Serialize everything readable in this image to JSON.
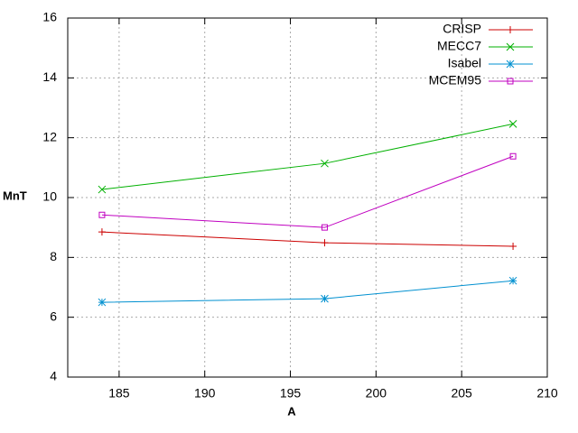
{
  "chart_data": {
    "type": "line",
    "x_label": "A",
    "y_label": "MnT",
    "x": [
      184,
      197,
      208
    ],
    "xlim": [
      182,
      210
    ],
    "xticks": [
      185,
      190,
      195,
      200,
      205,
      210
    ],
    "ylim": [
      4,
      16
    ],
    "yticks": [
      4,
      6,
      8,
      10,
      12,
      14,
      16
    ],
    "grid": true,
    "legend": "top-right",
    "series": [
      {
        "name": "CRISP",
        "color": "#cc0000",
        "marker": "plus",
        "values": [
          8.85,
          8.49,
          8.37
        ]
      },
      {
        "name": "MECC7",
        "color": "#00b000",
        "marker": "cross",
        "values": [
          10.27,
          11.14,
          12.46
        ]
      },
      {
        "name": "Isabel",
        "color": "#0090d0",
        "marker": "star",
        "values": [
          6.5,
          6.62,
          7.22
        ]
      },
      {
        "name": "MCEM95",
        "color": "#c000c0",
        "marker": "square",
        "values": [
          9.42,
          9.0,
          11.38
        ]
      }
    ]
  }
}
